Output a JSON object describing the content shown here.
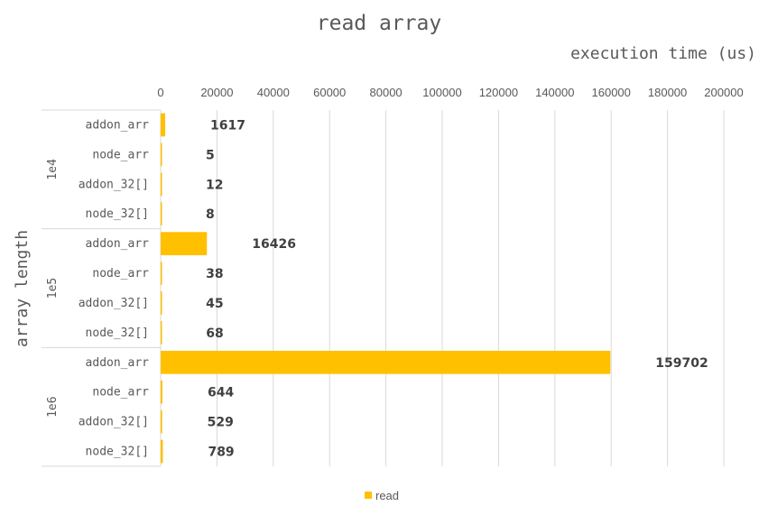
{
  "chart_data": {
    "type": "bar",
    "orientation": "horizontal",
    "title": "read array",
    "xlabel": "execution time (us)",
    "ylabel": "array length",
    "xlim": [
      0,
      200000
    ],
    "x_ticks": [
      "0",
      "20000",
      "40000",
      "60000",
      "80000",
      "100000",
      "120000",
      "140000",
      "160000",
      "180000",
      "200000"
    ],
    "x_axis_position": "top",
    "grid": true,
    "legend_position": "bottom",
    "bar_color": "#FFC000",
    "groups": [
      {
        "label": "1e4",
        "categories": [
          "addon_arr",
          "node_arr",
          "addon_32[]",
          "node_32[]"
        ],
        "values": [
          1617,
          5,
          12,
          8
        ]
      },
      {
        "label": "1e5",
        "categories": [
          "addon_arr",
          "node_arr",
          "addon_32[]",
          "node_32[]"
        ],
        "values": [
          16426,
          38,
          45,
          68
        ]
      },
      {
        "label": "1e6",
        "categories": [
          "addon_arr",
          "node_arr",
          "addon_32[]",
          "node_32[]"
        ],
        "values": [
          159702,
          644,
          529,
          789
        ]
      }
    ],
    "series": [
      {
        "name": "read"
      }
    ]
  }
}
